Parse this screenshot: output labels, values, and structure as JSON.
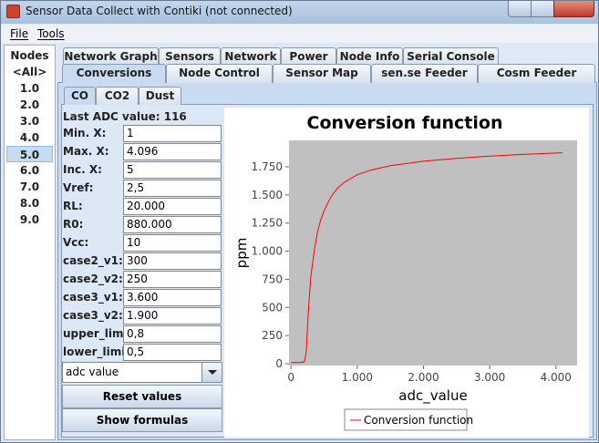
{
  "window": {
    "title": "Sensor Data Collect with Contiki (not connected)"
  },
  "menu": [
    "File",
    "Tools"
  ],
  "nodes": {
    "header": "Nodes",
    "items": [
      "<All>",
      "1.0",
      "2.0",
      "3.0",
      "4.0",
      "5.0",
      "6.0",
      "7.0",
      "8.0",
      "9.0"
    ],
    "selected": 5
  },
  "tabs_row1": [
    "Network Graph",
    "Sensors",
    "Network",
    "Power",
    "Node Info",
    "Serial Console"
  ],
  "tabs_row2": [
    "Conversions",
    "Node Control",
    "Sensor Map",
    "sen.se Feeder",
    "Cosm Feeder"
  ],
  "tabs_row2_selected": 0,
  "subtabs": [
    "CO",
    "CO2",
    "Dust"
  ],
  "subtabs_selected": 0,
  "form": {
    "last_adc_label": "Last ADC value:",
    "last_adc_value": 116,
    "fields": [
      {
        "label": "Min. X:",
        "value": "1"
      },
      {
        "label": "Max. X:",
        "value": "4.096"
      },
      {
        "label": "Inc. X:",
        "value": "5"
      },
      {
        "label": "Vref:",
        "value": "2,5"
      },
      {
        "label": "RL:",
        "value": "20.000"
      },
      {
        "label": "R0:",
        "value": "880.000"
      },
      {
        "label": "Vcc:",
        "value": "10"
      },
      {
        "label": "case2_v1:",
        "value": "300"
      },
      {
        "label": "case2_v2:",
        "value": "250"
      },
      {
        "label": "case3_v1:",
        "value": "3.600"
      },
      {
        "label": "case3_v2:",
        "value": "1.900"
      },
      {
        "label": "upper_limit:",
        "value": "0,8"
      },
      {
        "label": "lower_limit:",
        "value": "0,5"
      }
    ],
    "dropdown": "adc value",
    "buttons": [
      "Reset values",
      "Show formulas"
    ]
  },
  "chart_data": {
    "type": "line",
    "title": "Conversion function",
    "x_label": "adc_value",
    "y_label": "ppm",
    "x": [
      1,
      100,
      200,
      230,
      260,
      300,
      350,
      400,
      450,
      500,
      600,
      700,
      800,
      1000,
      1200,
      1500,
      2000,
      2500,
      3000,
      3500,
      4096
    ],
    "series": [
      {
        "name": "Conversion function",
        "color": "#ff0000",
        "values": [
          10,
          10,
          15,
          100,
          450,
          780,
          1000,
          1170,
          1280,
          1360,
          1480,
          1560,
          1610,
          1680,
          1720,
          1760,
          1800,
          1825,
          1845,
          1860,
          1875
        ]
      }
    ],
    "xlim": [
      -30,
      4320
    ],
    "ylim": [
      -16,
      1985
    ],
    "xticks": [
      0,
      {
        "value": 1000,
        "label": "1.000"
      },
      {
        "value": 2000,
        "label": "2.000"
      },
      {
        "value": 3000,
        "label": "3.000"
      },
      {
        "value": 4000,
        "label": "4.000"
      }
    ],
    "yticks": [
      0,
      250,
      500,
      750,
      {
        "value": 1000,
        "label": "1.000"
      },
      {
        "value": 1250,
        "label": "1.250"
      },
      {
        "value": 1500,
        "label": "1.500"
      },
      {
        "value": 1750,
        "label": "1.750"
      }
    ],
    "plot_background": "#c0c0c0",
    "grid": false,
    "legend": "bottom"
  }
}
